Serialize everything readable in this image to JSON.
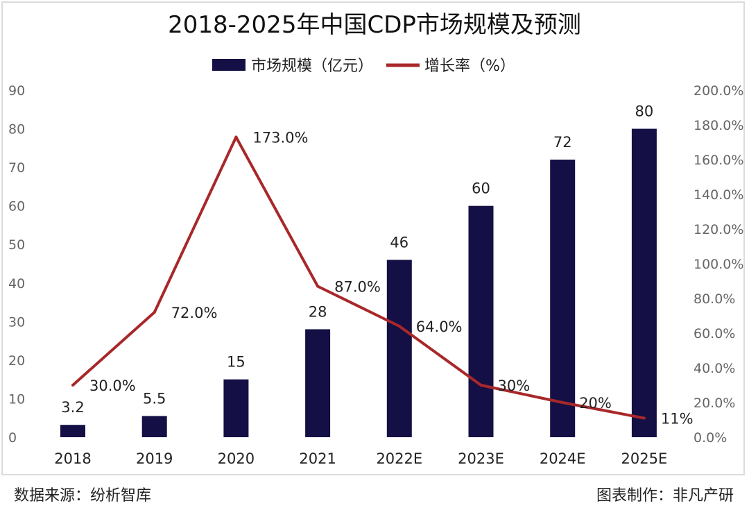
{
  "chart_data": {
    "type": "bar+line",
    "title": "2018-2025年中国CDP市场规模及预测",
    "categories": [
      "2018",
      "2019",
      "2020",
      "2021",
      "2022E",
      "2023E",
      "2024E",
      "2025E"
    ],
    "series": [
      {
        "name": "市场规模（亿元）",
        "type": "bar",
        "axis": "left",
        "color": "#140f44",
        "values": [
          3.2,
          5.5,
          15,
          28,
          46,
          60,
          72,
          80
        ],
        "labels": [
          "3.2",
          "5.5",
          "15",
          "28",
          "46",
          "60",
          "72",
          "80"
        ]
      },
      {
        "name": "增长率（%）",
        "type": "line",
        "axis": "right",
        "color": "#a8282a",
        "values": [
          30,
          72,
          173,
          87,
          64,
          30,
          20,
          11
        ],
        "labels": [
          "30.0%",
          "72.0%",
          "173.0%",
          "87.0%",
          "64.0%",
          "30%",
          "20%",
          "11%"
        ]
      }
    ],
    "left_axis": {
      "range": [
        0,
        90
      ],
      "ticks": [
        "0",
        "10",
        "20",
        "30",
        "40",
        "50",
        "60",
        "70",
        "80",
        "90"
      ]
    },
    "right_axis": {
      "range": [
        0,
        200
      ],
      "ticks": [
        "0.0%",
        "20.0%",
        "40.0%",
        "60.0%",
        "80.0%",
        "100.0%",
        "120.0%",
        "140.0%",
        "160.0%",
        "180.0%",
        "200.0%"
      ]
    },
    "grid": false,
    "legend_position": "top"
  },
  "footer": {
    "source": "数据来源：纷析智库",
    "maker": "图表制作：非凡产研"
  }
}
